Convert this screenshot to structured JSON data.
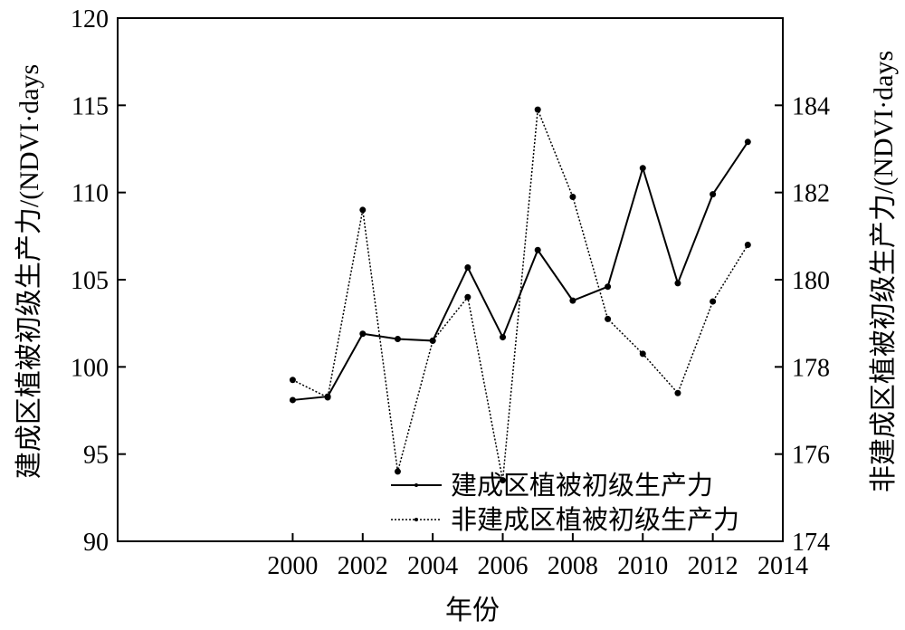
{
  "chart_data": {
    "type": "line",
    "x": [
      2000,
      2001,
      2002,
      2003,
      2004,
      2005,
      2006,
      2007,
      2008,
      2009,
      2010,
      2011,
      2012,
      2013
    ],
    "xlabel": "年份",
    "ylabel_left": "建成区植被初级生产力/(NDVI·days",
    "ylabel_right": "非建成区植被初级生产力/(NDVI·days",
    "xlim": [
      1995,
      2014
    ],
    "ylim_left": [
      90,
      120
    ],
    "ylim_right": [
      174,
      186
    ],
    "x_ticks": [
      "2000",
      "2002",
      "2004",
      "2006",
      "2008",
      "2010",
      "2012",
      "2014"
    ],
    "y_ticks_left": [
      "90",
      "95",
      "100",
      "105",
      "110",
      "115",
      "120"
    ],
    "y_ticks_right": [
      "174",
      "176",
      "178",
      "180",
      "182",
      "184"
    ],
    "series": [
      {
        "name": "建成区植被初级生产力",
        "axis": "left",
        "style": "solid",
        "values": [
          98.1,
          98.3,
          101.9,
          101.6,
          101.5,
          105.7,
          101.7,
          106.7,
          103.8,
          104.6,
          111.4,
          104.8,
          109.9,
          112.9
        ]
      },
      {
        "name": "非建成区植被初级生产力",
        "axis": "right",
        "style": "dotted",
        "values": [
          177.7,
          177.3,
          181.6,
          175.6,
          178.6,
          179.6,
          175.4,
          183.9,
          181.9,
          179.1,
          178.3,
          177.4,
          179.5,
          180.8
        ]
      }
    ],
    "legend_position": "bottom-right",
    "grid": false
  }
}
